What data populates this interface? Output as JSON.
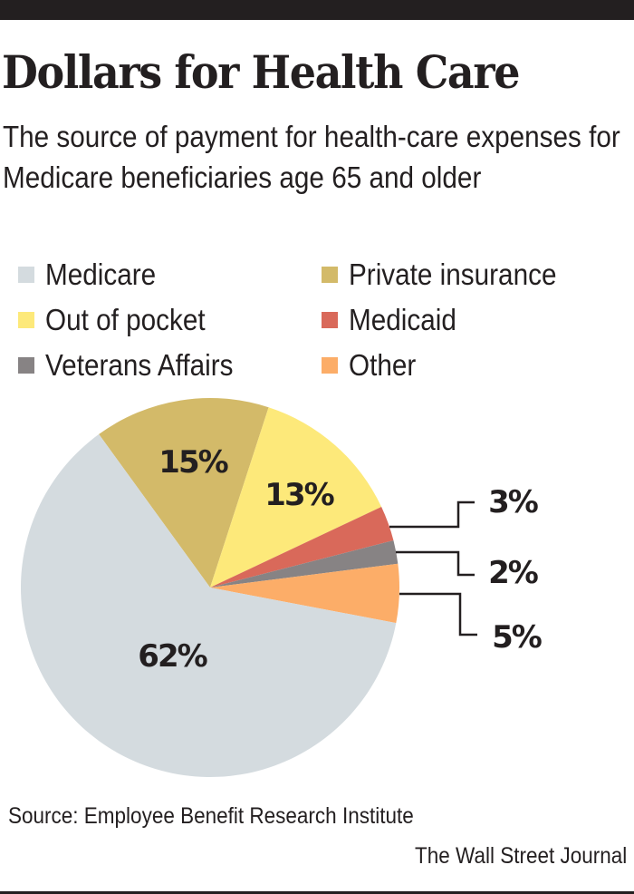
{
  "header": {
    "title": "Dollars for Health Care",
    "subtitle": "The source of payment for health-care expenses for Medicare beneficiaries age 65 and older"
  },
  "footer": {
    "source": "Source: Employee Benefit Research Institute",
    "credit": "The Wall Street Journal"
  },
  "chart_data": {
    "type": "pie",
    "title": "Dollars for Health Care",
    "subtitle": "The source of payment for health-care expenses for Medicare beneficiaries age 65 and older",
    "unit": "%",
    "legend_position": "top",
    "slices": [
      {
        "name": "Private insurance",
        "value": 15,
        "label": "15%",
        "color": "#d3ba69",
        "label_style": "inside"
      },
      {
        "name": "Out of pocket",
        "value": 13,
        "label": "13%",
        "color": "#fde97a",
        "label_style": "inside"
      },
      {
        "name": "Medicaid",
        "value": 3,
        "label": "3%",
        "color": "#d9695a",
        "label_style": "callout"
      },
      {
        "name": "Veterans Affairs",
        "value": 2,
        "label": "2%",
        "color": "#878384",
        "label_style": "callout"
      },
      {
        "name": "Other",
        "value": 5,
        "label": "5%",
        "color": "#fcad68",
        "label_style": "callout"
      },
      {
        "name": "Medicare",
        "value": 62,
        "label": "62%",
        "color": "#d4dbdf",
        "label_style": "inside"
      }
    ],
    "legend": [
      {
        "name": "Medicare",
        "color": "#d4dbdf"
      },
      {
        "name": "Private insurance",
        "color": "#d3ba69"
      },
      {
        "name": "Out of pocket",
        "color": "#fde97a"
      },
      {
        "name": "Medicaid",
        "color": "#d9695a"
      },
      {
        "name": "Veterans Affairs",
        "color": "#878384"
      },
      {
        "name": "Other",
        "color": "#fcad68"
      }
    ]
  }
}
